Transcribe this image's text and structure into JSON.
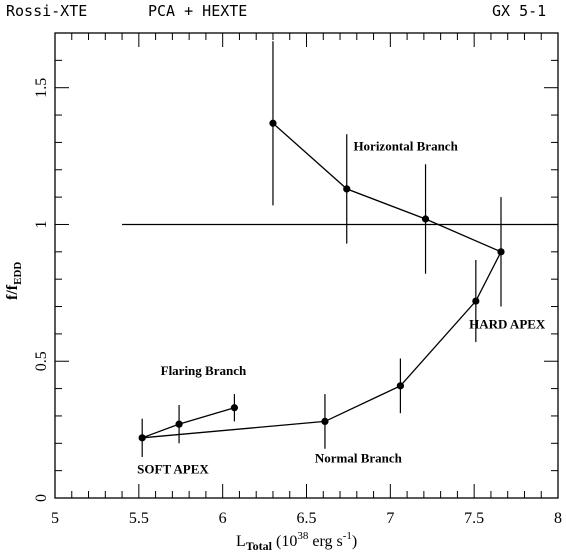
{
  "header": {
    "left": "Rossi-XTE",
    "middle": "PCA + HEXTE",
    "right": "GX 5-1"
  },
  "chart_data": {
    "type": "scatter",
    "xlabel": {
      "main": "L",
      "sub": "Total",
      "paren_open": "(10",
      "sup": "38",
      "unit": " erg s",
      "unit_sup": "-1",
      "paren_close": ")"
    },
    "ylabel": {
      "main": "f/f",
      "sub": "EDD"
    },
    "xlim": [
      5,
      8
    ],
    "ylim": [
      0,
      1.7
    ],
    "x_ticks": [
      5,
      5.5,
      6,
      6.5,
      7,
      7.5,
      8
    ],
    "x_tick_labels": [
      "5",
      "5.5",
      "6",
      "6.5",
      "7",
      "7.5",
      "8"
    ],
    "y_ticks": [
      0,
      0.5,
      1,
      1.5
    ],
    "y_tick_labels": [
      "0",
      "0.5",
      "1",
      "1.5"
    ],
    "reference_line": {
      "y": 1.0,
      "x_from": 5.4,
      "x_to": 8.0
    },
    "points": [
      {
        "x": 6.3,
        "y": 1.37,
        "ylo": 1.07,
        "yhi": 1.67
      },
      {
        "x": 6.74,
        "y": 1.13,
        "ylo": 0.93,
        "yhi": 1.33
      },
      {
        "x": 7.21,
        "y": 1.02,
        "ylo": 0.82,
        "yhi": 1.22
      },
      {
        "x": 7.66,
        "y": 0.9,
        "ylo": 0.7,
        "yhi": 1.1
      },
      {
        "x": 7.51,
        "y": 0.72,
        "ylo": 0.57,
        "yhi": 0.87
      },
      {
        "x": 7.06,
        "y": 0.41,
        "ylo": 0.31,
        "yhi": 0.51
      },
      {
        "x": 6.61,
        "y": 0.28,
        "ylo": 0.18,
        "yhi": 0.38
      },
      {
        "x": 5.52,
        "y": 0.22,
        "ylo": 0.15,
        "yhi": 0.29
      },
      {
        "x": 5.74,
        "y": 0.27,
        "ylo": 0.2,
        "yhi": 0.34
      },
      {
        "x": 6.07,
        "y": 0.33,
        "ylo": 0.28,
        "yhi": 0.38
      }
    ],
    "annotations": [
      {
        "text": "Horizontal Branch",
        "x": 6.78,
        "y": 1.27
      },
      {
        "text": "HARD APEX",
        "x": 7.47,
        "y": 0.62
      },
      {
        "text": "Flaring Branch",
        "x": 5.63,
        "y": 0.45
      },
      {
        "text": "SOFT APEX",
        "x": 5.49,
        "y": 0.09
      },
      {
        "text": "Normal Branch",
        "x": 6.55,
        "y": 0.13
      }
    ]
  }
}
